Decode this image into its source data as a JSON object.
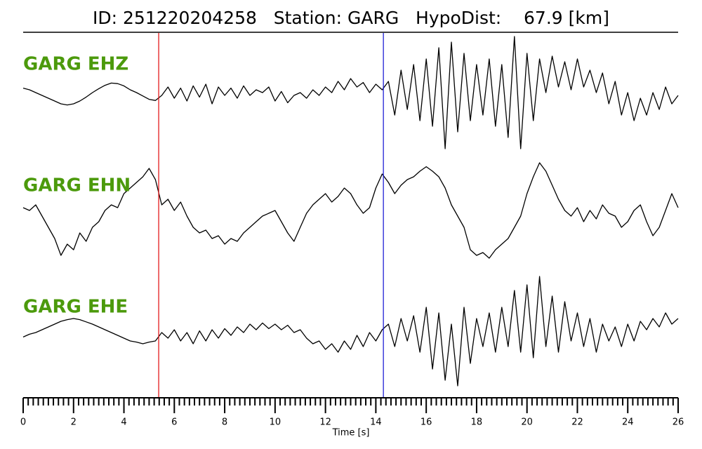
{
  "chart_data": {
    "type": "seismogram",
    "title": "ID: 251220204258   Station: GARG   HypoDist:    67.9 [km]",
    "xlabel": "Time [s]",
    "xlim": [
      0,
      26
    ],
    "xticks": [
      0,
      2,
      4,
      6,
      8,
      10,
      12,
      14,
      16,
      18,
      20,
      22,
      24,
      26
    ],
    "xticks_minor": [
      0.2,
      0.4,
      0.6,
      0.8,
      1,
      1.2,
      1.4,
      1.6,
      1.8,
      2.2,
      2.4,
      2.6,
      2.8,
      3,
      3.2,
      3.4,
      3.6,
      3.8,
      4.2,
      4.4,
      4.6,
      4.8,
      5,
      5.2,
      5.4,
      5.6,
      5.8,
      6.2,
      6.4,
      6.6,
      6.8,
      7,
      7.2,
      7.4,
      7.6,
      7.8,
      8.2,
      8.4,
      8.6,
      8.8,
      9,
      9.2,
      9.4,
      9.6,
      9.8,
      10.2,
      10.4,
      10.6,
      10.8,
      11,
      11.2,
      11.4,
      11.6,
      11.8,
      12.2,
      12.4,
      12.6,
      12.8,
      13,
      13.2,
      13.4,
      13.6,
      13.8,
      14.2,
      14.4,
      14.6,
      14.8,
      15,
      15.2,
      15.4,
      15.6,
      15.8,
      16.2,
      16.4,
      16.6,
      16.8,
      17,
      17.2,
      17.4,
      17.6,
      17.8,
      18.2,
      18.4,
      18.6,
      18.8,
      19,
      19.2,
      19.4,
      19.6,
      19.8,
      20.2,
      20.4,
      20.6,
      20.8,
      21,
      21.2,
      21.4,
      21.6,
      21.8,
      22.2,
      22.4,
      22.6,
      22.8,
      23,
      23.2,
      23.4,
      23.6,
      23.8,
      24.2,
      24.4,
      24.6,
      24.8,
      25,
      25.2,
      25.4,
      25.6,
      25.8
    ],
    "picks": [
      {
        "x": 5.38,
        "color": "#e41a1c"
      },
      {
        "x": 14.3,
        "color": "#1f1fd6"
      }
    ],
    "label_color": "#4c9a0c",
    "x": [
      0,
      0.25,
      0.5,
      0.75,
      1,
      1.25,
      1.5,
      1.75,
      2,
      2.25,
      2.5,
      2.75,
      3,
      3.25,
      3.5,
      3.75,
      4,
      4.25,
      4.5,
      4.75,
      5,
      5.25,
      5.5,
      5.75,
      6,
      6.25,
      6.5,
      6.75,
      7,
      7.25,
      7.5,
      7.75,
      8,
      8.25,
      8.5,
      8.75,
      9,
      9.25,
      9.5,
      9.75,
      10,
      10.25,
      10.5,
      10.75,
      11,
      11.25,
      11.5,
      11.75,
      12,
      12.25,
      12.5,
      12.75,
      13,
      13.25,
      13.5,
      13.75,
      14,
      14.25,
      14.5,
      14.75,
      15,
      15.25,
      15.5,
      15.75,
      16,
      16.25,
      16.5,
      16.75,
      17,
      17.25,
      17.5,
      17.75,
      18,
      18.25,
      18.5,
      18.75,
      19,
      19.25,
      19.5,
      19.75,
      20,
      20.25,
      20.5,
      20.75,
      21,
      21.25,
      21.5,
      21.75,
      22,
      22.25,
      22.5,
      22.75,
      23,
      23.25,
      23.5,
      23.75,
      24,
      24.25,
      24.5,
      24.75,
      25,
      25.25,
      25.5,
      25.75,
      26
    ],
    "series": [
      {
        "name": "GARG EHZ",
        "color": "#000000",
        "values": [
          0.18,
          0.15,
          0.1,
          0.05,
          0.0,
          -0.05,
          -0.1,
          -0.12,
          -0.1,
          -0.05,
          0.02,
          0.1,
          0.17,
          0.23,
          0.27,
          0.26,
          0.22,
          0.15,
          0.1,
          0.04,
          -0.02,
          -0.04,
          0.05,
          0.2,
          0.0,
          0.18,
          -0.05,
          0.22,
          0.02,
          0.25,
          -0.1,
          0.2,
          0.05,
          0.18,
          0.0,
          0.22,
          0.05,
          0.15,
          0.1,
          0.2,
          -0.05,
          0.12,
          -0.08,
          0.05,
          0.1,
          0.0,
          0.15,
          0.05,
          0.2,
          0.1,
          0.3,
          0.15,
          0.35,
          0.2,
          0.28,
          0.1,
          0.25,
          0.15,
          0.3,
          -0.3,
          0.5,
          -0.2,
          0.6,
          -0.4,
          0.7,
          -0.5,
          0.9,
          -0.9,
          1.0,
          -0.6,
          0.8,
          -0.4,
          0.6,
          -0.3,
          0.7,
          -0.5,
          0.6,
          -0.7,
          1.1,
          -0.9,
          0.8,
          -0.4,
          0.7,
          0.1,
          0.75,
          0.2,
          0.65,
          0.15,
          0.7,
          0.2,
          0.5,
          0.1,
          0.45,
          -0.1,
          0.3,
          -0.3,
          0.1,
          -0.4,
          0.0,
          -0.3,
          0.1,
          -0.2,
          0.2,
          -0.1,
          0.05
        ]
      },
      {
        "name": "GARG EHN",
        "color": "#000000",
        "values": [
          0.05,
          0.0,
          0.1,
          -0.1,
          -0.3,
          -0.5,
          -0.8,
          -0.6,
          -0.7,
          -0.4,
          -0.55,
          -0.3,
          -0.2,
          0.0,
          0.1,
          0.05,
          0.3,
          0.4,
          0.5,
          0.6,
          0.75,
          0.55,
          0.1,
          0.2,
          0.0,
          0.15,
          -0.1,
          -0.3,
          -0.4,
          -0.35,
          -0.5,
          -0.45,
          -0.6,
          -0.5,
          -0.55,
          -0.4,
          -0.3,
          -0.2,
          -0.1,
          -0.05,
          0.0,
          -0.2,
          -0.4,
          -0.55,
          -0.3,
          -0.05,
          0.1,
          0.2,
          0.3,
          0.15,
          0.25,
          0.4,
          0.3,
          0.1,
          -0.05,
          0.05,
          0.4,
          0.65,
          0.5,
          0.3,
          0.45,
          0.55,
          0.6,
          0.7,
          0.78,
          0.7,
          0.6,
          0.4,
          0.1,
          -0.1,
          -0.3,
          -0.7,
          -0.8,
          -0.75,
          -0.85,
          -0.7,
          -0.6,
          -0.5,
          -0.3,
          -0.1,
          0.3,
          0.6,
          0.85,
          0.7,
          0.45,
          0.2,
          0.0,
          -0.1,
          0.05,
          -0.2,
          0.0,
          -0.15,
          0.1,
          -0.05,
          -0.1,
          -0.3,
          -0.2,
          0.0,
          0.1,
          -0.2,
          -0.45,
          -0.3,
          0.0,
          0.3,
          0.05
        ]
      },
      {
        "name": "GARG EHE",
        "color": "#000000",
        "values": [
          -0.03,
          0.02,
          0.05,
          0.1,
          0.15,
          0.2,
          0.25,
          0.28,
          0.3,
          0.28,
          0.24,
          0.2,
          0.15,
          0.1,
          0.05,
          0.0,
          -0.05,
          -0.1,
          -0.12,
          -0.15,
          -0.12,
          -0.1,
          0.05,
          -0.05,
          0.1,
          -0.1,
          0.05,
          -0.15,
          0.08,
          -0.1,
          0.1,
          -0.05,
          0.12,
          0.0,
          0.15,
          0.05,
          0.2,
          0.1,
          0.22,
          0.12,
          0.2,
          0.1,
          0.18,
          0.05,
          0.1,
          -0.05,
          -0.15,
          -0.1,
          -0.25,
          -0.15,
          -0.3,
          -0.1,
          -0.25,
          0.0,
          -0.2,
          0.05,
          -0.1,
          0.1,
          0.2,
          -0.2,
          0.3,
          -0.1,
          0.35,
          -0.3,
          0.5,
          -0.6,
          0.4,
          -0.8,
          0.2,
          -0.9,
          0.5,
          -0.5,
          0.3,
          -0.2,
          0.4,
          -0.3,
          0.5,
          -0.2,
          0.8,
          -0.3,
          0.9,
          -0.4,
          1.05,
          -0.2,
          0.7,
          -0.3,
          0.6,
          -0.1,
          0.4,
          -0.2,
          0.3,
          -0.3,
          0.2,
          -0.1,
          0.15,
          -0.2,
          0.2,
          -0.1,
          0.25,
          0.1,
          0.3,
          0.15,
          0.4,
          0.2,
          0.3
        ]
      }
    ]
  }
}
